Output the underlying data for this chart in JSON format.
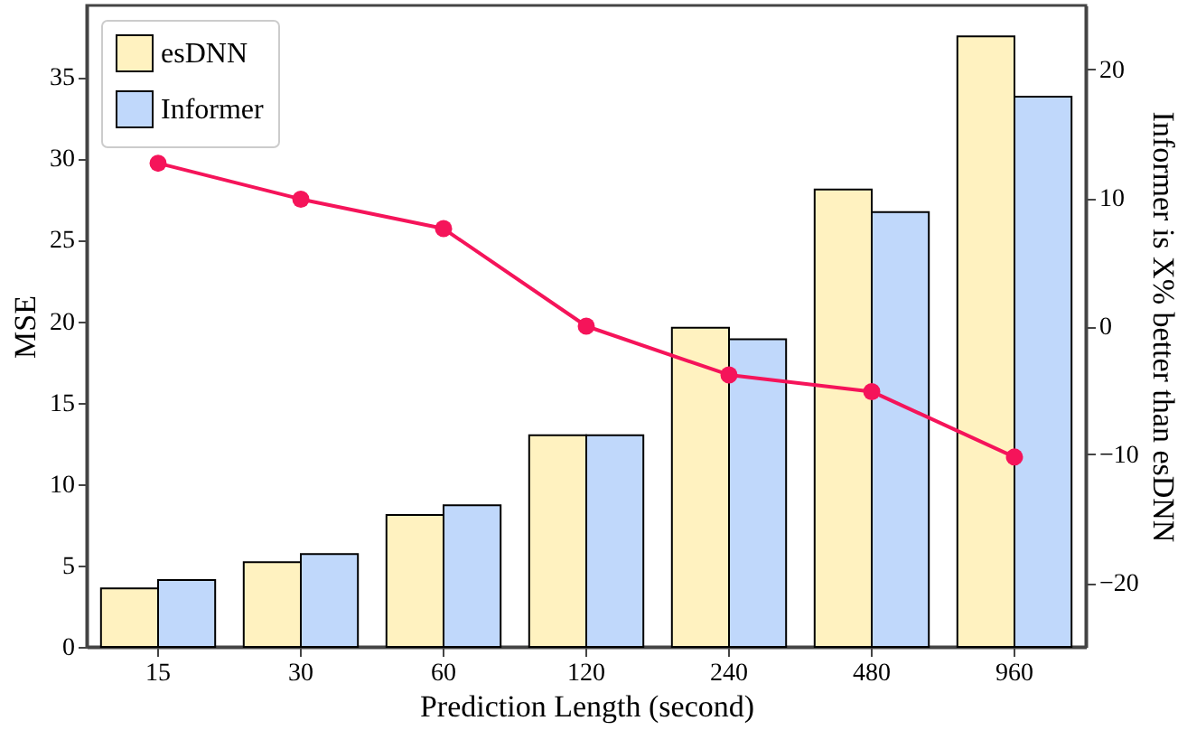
{
  "chart_data": {
    "type": "bar",
    "xlabel": "Prediction Length (second)",
    "ylabel": "MSE",
    "y2label": "Informer is X% better than esDNN",
    "categories": [
      "15",
      "30",
      "60",
      "120",
      "240",
      "480",
      "960"
    ],
    "series": [
      {
        "name": "esDNN",
        "color": "#fff2c0",
        "values": [
          3.6,
          5.2,
          8.1,
          13.0,
          19.6,
          28.1,
          37.5
        ]
      },
      {
        "name": "Informer",
        "color": "#c0d8fb",
        "values": [
          4.1,
          5.7,
          8.7,
          13.0,
          18.9,
          26.7,
          33.8
        ]
      },
      {
        "type": "line",
        "axis": "y2",
        "color": "#f5145a",
        "marker": "circle",
        "values": [
          12.7,
          9.9,
          7.6,
          0.0,
          -3.8,
          -5.1,
          -10.2
        ]
      }
    ],
    "ylim": [
      0,
      39.4
    ],
    "yticks": [
      0,
      5,
      10,
      15,
      20,
      25,
      30,
      35
    ],
    "y2lim": [
      -25,
      25
    ],
    "y2ticks": [
      -20,
      -10,
      0,
      10,
      20
    ],
    "grid": false,
    "legend": "top left"
  }
}
